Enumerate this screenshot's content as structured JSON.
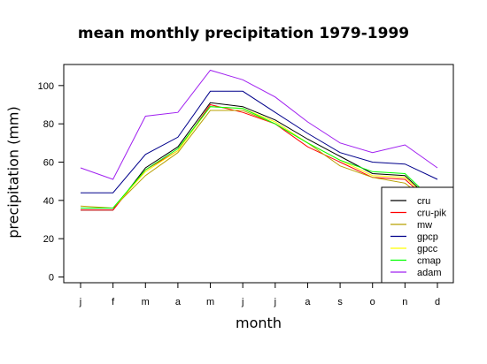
{
  "chart_data": {
    "type": "line",
    "title": "mean monthly precipitation 1979-1999",
    "xlabel": "month",
    "ylabel": "precipitation (mm)",
    "categories": [
      "j",
      "f",
      "m",
      "a",
      "m",
      "j",
      "j",
      "a",
      "s",
      "o",
      "n",
      "d"
    ],
    "ylim": [
      -3,
      111
    ],
    "yticks": [
      0,
      20,
      40,
      60,
      80,
      100
    ],
    "grid": false,
    "legend": "bottom-right",
    "series": [
      {
        "name": "cru",
        "color": "#000000",
        "values": [
          35,
          35,
          57,
          68,
          91,
          89,
          82,
          72,
          63,
          54,
          53,
          37
        ]
      },
      {
        "name": "cru-pik",
        "color": "#ff0000",
        "values": [
          35,
          35,
          56,
          66,
          90,
          86,
          80,
          68,
          60,
          52,
          51,
          36
        ]
      },
      {
        "name": "mw",
        "color": "#b8a000",
        "values": [
          37,
          36,
          53,
          65,
          87,
          87,
          80,
          70,
          58,
          52,
          49,
          36
        ]
      },
      {
        "name": "gpcp",
        "color": "#00008b",
        "values": [
          44,
          44,
          64,
          73,
          97,
          97,
          86,
          75,
          65,
          60,
          59,
          51
        ]
      },
      {
        "name": "gpcc",
        "color": "#ffff00",
        "values": [
          36,
          36,
          55,
          66,
          89,
          88,
          81,
          70,
          61,
          53,
          52,
          37
        ]
      },
      {
        "name": "cmap",
        "color": "#00ff00",
        "values": [
          36,
          36,
          56,
          67,
          89,
          88,
          80,
          70,
          61,
          55,
          54,
          38
        ]
      },
      {
        "name": "adam",
        "color": "#a020f0",
        "values": [
          57,
          51,
          84,
          86,
          108,
          103,
          94,
          81,
          70,
          65,
          69,
          57
        ]
      }
    ]
  }
}
